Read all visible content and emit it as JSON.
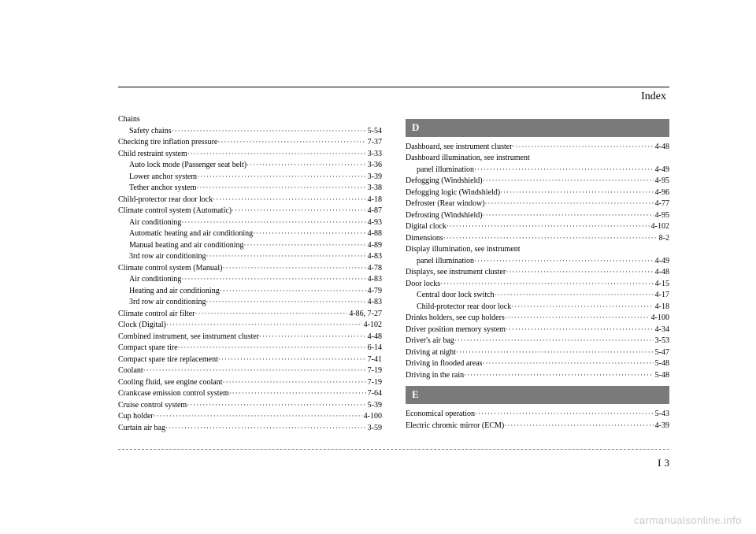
{
  "header": {
    "title": "Index"
  },
  "left": [
    {
      "label": "Chains",
      "page": "",
      "indent": 0,
      "nopage": true
    },
    {
      "label": "Safety chains",
      "page": "5-54",
      "indent": 1
    },
    {
      "label": "Checking tire inflation pressure",
      "page": "7-37",
      "indent": 0
    },
    {
      "label": "Child restraint system",
      "page": "3-33",
      "indent": 0
    },
    {
      "label": "Auto lock mode (Passenger seat belt)",
      "page": "3-36",
      "indent": 1
    },
    {
      "label": "Lower anchor system",
      "page": "3-39",
      "indent": 1
    },
    {
      "label": "Tether anchor system",
      "page": "3-38",
      "indent": 1
    },
    {
      "label": "Child-protector rear door lock",
      "page": "4-18",
      "indent": 0
    },
    {
      "label": "Climate control system (Automatic)",
      "page": "4-87",
      "indent": 0
    },
    {
      "label": "Air conditioning",
      "page": "4-93",
      "indent": 1
    },
    {
      "label": "Automatic heating and air conditioning",
      "page": "4-88",
      "indent": 1
    },
    {
      "label": "Manual heating and air conditioning",
      "page": "4-89",
      "indent": 1
    },
    {
      "label": "3rd row air conditioning",
      "page": "4-83",
      "indent": 1
    },
    {
      "label": "Climate control system (Manual)",
      "page": "4-78",
      "indent": 0
    },
    {
      "label": "Air conditioning",
      "page": "4-83",
      "indent": 1
    },
    {
      "label": "Heating and air conditioning",
      "page": "4-79",
      "indent": 1
    },
    {
      "label": "3rd row air conditioning",
      "page": "4-83",
      "indent": 1
    },
    {
      "label": "Climate control air filter",
      "page": "4-86, 7-27",
      "indent": 0
    },
    {
      "label": "Clock (Digital)",
      "page": "4-102",
      "indent": 0
    },
    {
      "label": "Combined instrument, see instrument cluster",
      "page": "4-48",
      "indent": 0
    },
    {
      "label": "Compact spare tire",
      "page": "6-14",
      "indent": 0
    },
    {
      "label": "Compact spare tire replacement",
      "page": "7-41",
      "indent": 0
    },
    {
      "label": "Coolant",
      "page": "7-19",
      "indent": 0
    },
    {
      "label": "Cooling fluid, see engine coolant",
      "page": "7-19",
      "indent": 0
    },
    {
      "label": "Crankcase emission control system",
      "page": "7-64",
      "indent": 0
    },
    {
      "label": "Cruise control system",
      "page": "5-39",
      "indent": 0
    },
    {
      "label": "Cup holder",
      "page": "4-100",
      "indent": 0
    },
    {
      "label": "Curtain air bag",
      "page": "3-59",
      "indent": 0
    }
  ],
  "sections": {
    "d": "D",
    "e": "E"
  },
  "right_d": [
    {
      "label": "Dashboard, see instrument cluster",
      "page": "4-48",
      "indent": 0
    },
    {
      "label": "Dashboard illumination, see instrument",
      "page": "",
      "indent": 0,
      "nopage": true
    },
    {
      "label": "panel illumination",
      "page": "4-49",
      "indent": 1
    },
    {
      "label": "Defogging (Windshield)",
      "page": "4-95",
      "indent": 0
    },
    {
      "label": "Defogging logic (Windshield)",
      "page": "4-96",
      "indent": 0
    },
    {
      "label": "Defroster (Rear window)",
      "page": "4-77",
      "indent": 0
    },
    {
      "label": "Defrosting (Windshield)",
      "page": "4-95",
      "indent": 0
    },
    {
      "label": "Digital clock",
      "page": "4-102",
      "indent": 0
    },
    {
      "label": "Dimensions",
      "page": "8-2",
      "indent": 0
    },
    {
      "label": "Display illumination, see instrument",
      "page": "",
      "indent": 0,
      "nopage": true
    },
    {
      "label": "panel illumination",
      "page": "4-49",
      "indent": 1
    },
    {
      "label": "Displays, see instrument cluster",
      "page": "4-48",
      "indent": 0
    },
    {
      "label": "Door locks",
      "page": "4-15",
      "indent": 0
    },
    {
      "label": "Central door lock switch",
      "page": "4-17",
      "indent": 1
    },
    {
      "label": "Child-protector rear door lock",
      "page": "4-18",
      "indent": 1
    },
    {
      "label": "Drinks holders, see cup holders",
      "page": "4-100",
      "indent": 0
    },
    {
      "label": "Driver position memory system",
      "page": "4-34",
      "indent": 0
    },
    {
      "label": "Driver's air bag",
      "page": "3-53",
      "indent": 0
    },
    {
      "label": "Driving at night",
      "page": "5-47",
      "indent": 0
    },
    {
      "label": "Driving in flooded areas",
      "page": "5-48",
      "indent": 0
    },
    {
      "label": "Driving in the rain",
      "page": "5-48",
      "indent": 0
    }
  ],
  "right_e": [
    {
      "label": "Economical operation",
      "page": "5-43",
      "indent": 0
    },
    {
      "label": "Electric chromic mirror (ECM)",
      "page": "4-39",
      "indent": 0
    }
  ],
  "footer": {
    "section": "I",
    "page": "3"
  },
  "watermark": "carmanualsonline.info"
}
